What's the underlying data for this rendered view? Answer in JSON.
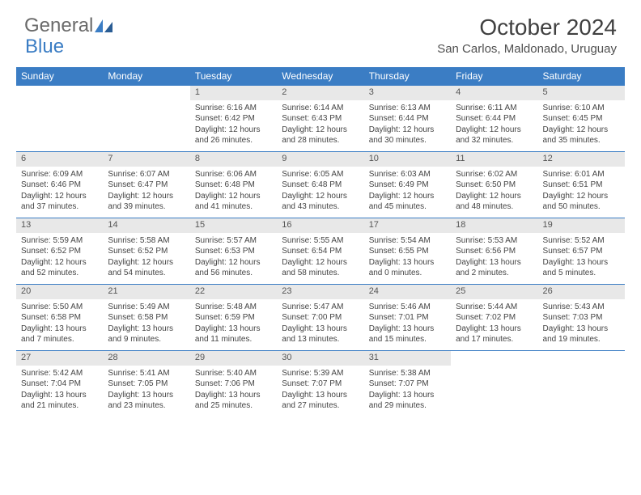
{
  "logo": {
    "text1": "General",
    "text2": "Blue"
  },
  "title": "October 2024",
  "location": "San Carlos, Maldonado, Uruguay",
  "colors": {
    "header_bg": "#3b7dc4",
    "header_text": "#ffffff",
    "daynum_bg": "#e8e8e8",
    "border": "#3b7dc4",
    "text": "#444444"
  },
  "day_headers": [
    "Sunday",
    "Monday",
    "Tuesday",
    "Wednesday",
    "Thursday",
    "Friday",
    "Saturday"
  ],
  "weeks": [
    [
      null,
      null,
      {
        "n": "1",
        "sr": "6:16 AM",
        "ss": "6:42 PM",
        "dl": "12 hours and 26 minutes."
      },
      {
        "n": "2",
        "sr": "6:14 AM",
        "ss": "6:43 PM",
        "dl": "12 hours and 28 minutes."
      },
      {
        "n": "3",
        "sr": "6:13 AM",
        "ss": "6:44 PM",
        "dl": "12 hours and 30 minutes."
      },
      {
        "n": "4",
        "sr": "6:11 AM",
        "ss": "6:44 PM",
        "dl": "12 hours and 32 minutes."
      },
      {
        "n": "5",
        "sr": "6:10 AM",
        "ss": "6:45 PM",
        "dl": "12 hours and 35 minutes."
      }
    ],
    [
      {
        "n": "6",
        "sr": "6:09 AM",
        "ss": "6:46 PM",
        "dl": "12 hours and 37 minutes."
      },
      {
        "n": "7",
        "sr": "6:07 AM",
        "ss": "6:47 PM",
        "dl": "12 hours and 39 minutes."
      },
      {
        "n": "8",
        "sr": "6:06 AM",
        "ss": "6:48 PM",
        "dl": "12 hours and 41 minutes."
      },
      {
        "n": "9",
        "sr": "6:05 AM",
        "ss": "6:48 PM",
        "dl": "12 hours and 43 minutes."
      },
      {
        "n": "10",
        "sr": "6:03 AM",
        "ss": "6:49 PM",
        "dl": "12 hours and 45 minutes."
      },
      {
        "n": "11",
        "sr": "6:02 AM",
        "ss": "6:50 PM",
        "dl": "12 hours and 48 minutes."
      },
      {
        "n": "12",
        "sr": "6:01 AM",
        "ss": "6:51 PM",
        "dl": "12 hours and 50 minutes."
      }
    ],
    [
      {
        "n": "13",
        "sr": "5:59 AM",
        "ss": "6:52 PM",
        "dl": "12 hours and 52 minutes."
      },
      {
        "n": "14",
        "sr": "5:58 AM",
        "ss": "6:52 PM",
        "dl": "12 hours and 54 minutes."
      },
      {
        "n": "15",
        "sr": "5:57 AM",
        "ss": "6:53 PM",
        "dl": "12 hours and 56 minutes."
      },
      {
        "n": "16",
        "sr": "5:55 AM",
        "ss": "6:54 PM",
        "dl": "12 hours and 58 minutes."
      },
      {
        "n": "17",
        "sr": "5:54 AM",
        "ss": "6:55 PM",
        "dl": "13 hours and 0 minutes."
      },
      {
        "n": "18",
        "sr": "5:53 AM",
        "ss": "6:56 PM",
        "dl": "13 hours and 2 minutes."
      },
      {
        "n": "19",
        "sr": "5:52 AM",
        "ss": "6:57 PM",
        "dl": "13 hours and 5 minutes."
      }
    ],
    [
      {
        "n": "20",
        "sr": "5:50 AM",
        "ss": "6:58 PM",
        "dl": "13 hours and 7 minutes."
      },
      {
        "n": "21",
        "sr": "5:49 AM",
        "ss": "6:58 PM",
        "dl": "13 hours and 9 minutes."
      },
      {
        "n": "22",
        "sr": "5:48 AM",
        "ss": "6:59 PM",
        "dl": "13 hours and 11 minutes."
      },
      {
        "n": "23",
        "sr": "5:47 AM",
        "ss": "7:00 PM",
        "dl": "13 hours and 13 minutes."
      },
      {
        "n": "24",
        "sr": "5:46 AM",
        "ss": "7:01 PM",
        "dl": "13 hours and 15 minutes."
      },
      {
        "n": "25",
        "sr": "5:44 AM",
        "ss": "7:02 PM",
        "dl": "13 hours and 17 minutes."
      },
      {
        "n": "26",
        "sr": "5:43 AM",
        "ss": "7:03 PM",
        "dl": "13 hours and 19 minutes."
      }
    ],
    [
      {
        "n": "27",
        "sr": "5:42 AM",
        "ss": "7:04 PM",
        "dl": "13 hours and 21 minutes."
      },
      {
        "n": "28",
        "sr": "5:41 AM",
        "ss": "7:05 PM",
        "dl": "13 hours and 23 minutes."
      },
      {
        "n": "29",
        "sr": "5:40 AM",
        "ss": "7:06 PM",
        "dl": "13 hours and 25 minutes."
      },
      {
        "n": "30",
        "sr": "5:39 AM",
        "ss": "7:07 PM",
        "dl": "13 hours and 27 minutes."
      },
      {
        "n": "31",
        "sr": "5:38 AM",
        "ss": "7:07 PM",
        "dl": "13 hours and 29 minutes."
      },
      null,
      null
    ]
  ],
  "labels": {
    "sunrise": "Sunrise:",
    "sunset": "Sunset:",
    "daylight": "Daylight:"
  }
}
